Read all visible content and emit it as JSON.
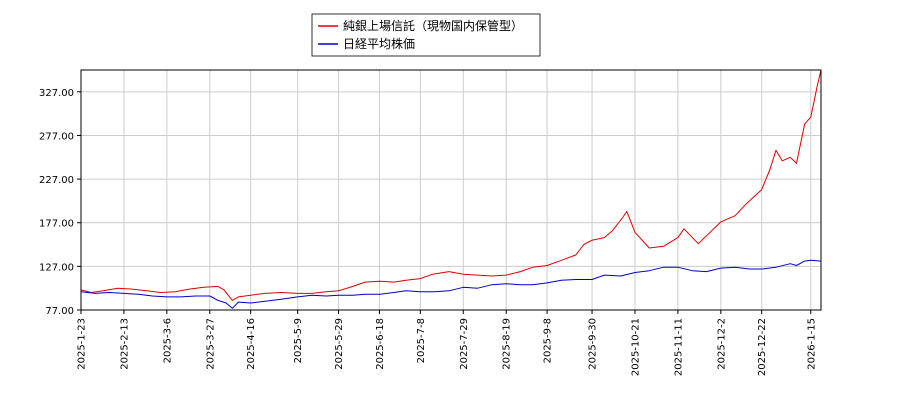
{
  "chart_data": {
    "type": "line",
    "legend": {
      "placement": "top-center",
      "entries": [
        {
          "label": "純銀上場信託（現物国内保管型）",
          "color": "#e00000"
        },
        {
          "label": "日経平均株価",
          "color": "#0000cc"
        }
      ]
    },
    "grid": true,
    "ylim": [
      77,
      352
    ],
    "y_ticks": [
      "77.00",
      "127.00",
      "177.00",
      "227.00",
      "277.00",
      "327.00"
    ],
    "x_range": [
      "2025-01-23",
      "2026-01-20"
    ],
    "x_ticks": [
      "2025-1-23",
      "2025-2-13",
      "2025-3-6",
      "2025-3-27",
      "2025-4-16",
      "2025-5-9",
      "2025-5-29",
      "2025-6-18",
      "2025-7-8",
      "2025-7-29",
      "2025-8-19",
      "2025-9-8",
      "2025-9-30",
      "2025-10-21",
      "2025-11-11",
      "2025-12-2",
      "2025-12-22",
      "2026-1-15"
    ],
    "series": [
      {
        "name": "純銀上場信託（現物国内保管型）",
        "color": "#e00000",
        "points": [
          [
            "2025-01-23",
            100
          ],
          [
            "2025-01-28",
            97
          ],
          [
            "2025-02-03",
            99
          ],
          [
            "2025-02-10",
            102
          ],
          [
            "2025-02-17",
            101
          ],
          [
            "2025-02-24",
            99
          ],
          [
            "2025-03-03",
            97
          ],
          [
            "2025-03-10",
            98
          ],
          [
            "2025-03-17",
            101
          ],
          [
            "2025-03-24",
            103
          ],
          [
            "2025-03-31",
            104
          ],
          [
            "2025-04-03",
            100
          ],
          [
            "2025-04-07",
            88
          ],
          [
            "2025-04-10",
            92
          ],
          [
            "2025-04-16",
            94
          ],
          [
            "2025-04-23",
            96
          ],
          [
            "2025-05-01",
            97
          ],
          [
            "2025-05-09",
            96
          ],
          [
            "2025-05-16",
            96
          ],
          [
            "2025-05-23",
            98
          ],
          [
            "2025-05-29",
            99
          ],
          [
            "2025-06-05",
            104
          ],
          [
            "2025-06-11",
            109
          ],
          [
            "2025-06-18",
            110
          ],
          [
            "2025-06-25",
            109
          ],
          [
            "2025-07-01",
            111
          ],
          [
            "2025-07-08",
            113
          ],
          [
            "2025-07-14",
            118
          ],
          [
            "2025-07-22",
            121
          ],
          [
            "2025-07-29",
            118
          ],
          [
            "2025-08-05",
            117
          ],
          [
            "2025-08-12",
            116
          ],
          [
            "2025-08-19",
            117
          ],
          [
            "2025-08-26",
            121
          ],
          [
            "2025-09-01",
            126
          ],
          [
            "2025-09-08",
            128
          ],
          [
            "2025-09-15",
            134
          ],
          [
            "2025-09-22",
            140
          ],
          [
            "2025-09-26",
            152
          ],
          [
            "2025-09-30",
            157
          ],
          [
            "2025-10-06",
            160
          ],
          [
            "2025-10-10",
            168
          ],
          [
            "2025-10-15",
            183
          ],
          [
            "2025-10-17",
            190
          ],
          [
            "2025-10-21",
            166
          ],
          [
            "2025-10-28",
            148
          ],
          [
            "2025-11-04",
            150
          ],
          [
            "2025-11-11",
            160
          ],
          [
            "2025-11-14",
            170
          ],
          [
            "2025-11-21",
            153
          ],
          [
            "2025-11-25",
            162
          ],
          [
            "2025-12-02",
            178
          ],
          [
            "2025-12-09",
            185
          ],
          [
            "2025-12-15",
            200
          ],
          [
            "2025-12-22",
            215
          ],
          [
            "2025-12-26",
            238
          ],
          [
            "2025-12-29",
            260
          ],
          [
            "2026-01-01",
            248
          ],
          [
            "2026-01-05",
            252
          ],
          [
            "2026-01-08",
            245
          ],
          [
            "2026-01-12",
            290
          ],
          [
            "2026-01-15",
            298
          ],
          [
            "2026-01-18",
            332
          ],
          [
            "2026-01-20",
            352
          ]
        ]
      },
      {
        "name": "日経平均株価",
        "color": "#0000cc",
        "points": [
          [
            "2025-01-23",
            98
          ],
          [
            "2025-01-30",
            96
          ],
          [
            "2025-02-06",
            97
          ],
          [
            "2025-02-13",
            96
          ],
          [
            "2025-02-20",
            95
          ],
          [
            "2025-02-27",
            93
          ],
          [
            "2025-03-06",
            92
          ],
          [
            "2025-03-13",
            92
          ],
          [
            "2025-03-20",
            93
          ],
          [
            "2025-03-27",
            93
          ],
          [
            "2025-03-31",
            88
          ],
          [
            "2025-04-04",
            85
          ],
          [
            "2025-04-07",
            79
          ],
          [
            "2025-04-10",
            86
          ],
          [
            "2025-04-16",
            85
          ],
          [
            "2025-04-23",
            87
          ],
          [
            "2025-04-30",
            89
          ],
          [
            "2025-05-09",
            92
          ],
          [
            "2025-05-16",
            94
          ],
          [
            "2025-05-23",
            93
          ],
          [
            "2025-05-29",
            94
          ],
          [
            "2025-06-05",
            94
          ],
          [
            "2025-06-11",
            95
          ],
          [
            "2025-06-18",
            95
          ],
          [
            "2025-06-25",
            97
          ],
          [
            "2025-07-01",
            99
          ],
          [
            "2025-07-08",
            98
          ],
          [
            "2025-07-15",
            98
          ],
          [
            "2025-07-22",
            99
          ],
          [
            "2025-07-29",
            103
          ],
          [
            "2025-08-05",
            102
          ],
          [
            "2025-08-12",
            106
          ],
          [
            "2025-08-19",
            107
          ],
          [
            "2025-08-26",
            106
          ],
          [
            "2025-09-01",
            106
          ],
          [
            "2025-09-08",
            108
          ],
          [
            "2025-09-15",
            111
          ],
          [
            "2025-09-22",
            112
          ],
          [
            "2025-09-30",
            112
          ],
          [
            "2025-10-06",
            117
          ],
          [
            "2025-10-14",
            116
          ],
          [
            "2025-10-21",
            120
          ],
          [
            "2025-10-28",
            122
          ],
          [
            "2025-11-04",
            126
          ],
          [
            "2025-11-11",
            126
          ],
          [
            "2025-11-18",
            122
          ],
          [
            "2025-11-25",
            121
          ],
          [
            "2025-12-02",
            125
          ],
          [
            "2025-12-09",
            126
          ],
          [
            "2025-12-16",
            124
          ],
          [
            "2025-12-22",
            124
          ],
          [
            "2025-12-29",
            126
          ],
          [
            "2026-01-05",
            130
          ],
          [
            "2026-01-08",
            128
          ],
          [
            "2026-01-12",
            133
          ],
          [
            "2026-01-15",
            134
          ],
          [
            "2026-01-20",
            133
          ]
        ]
      }
    ]
  }
}
